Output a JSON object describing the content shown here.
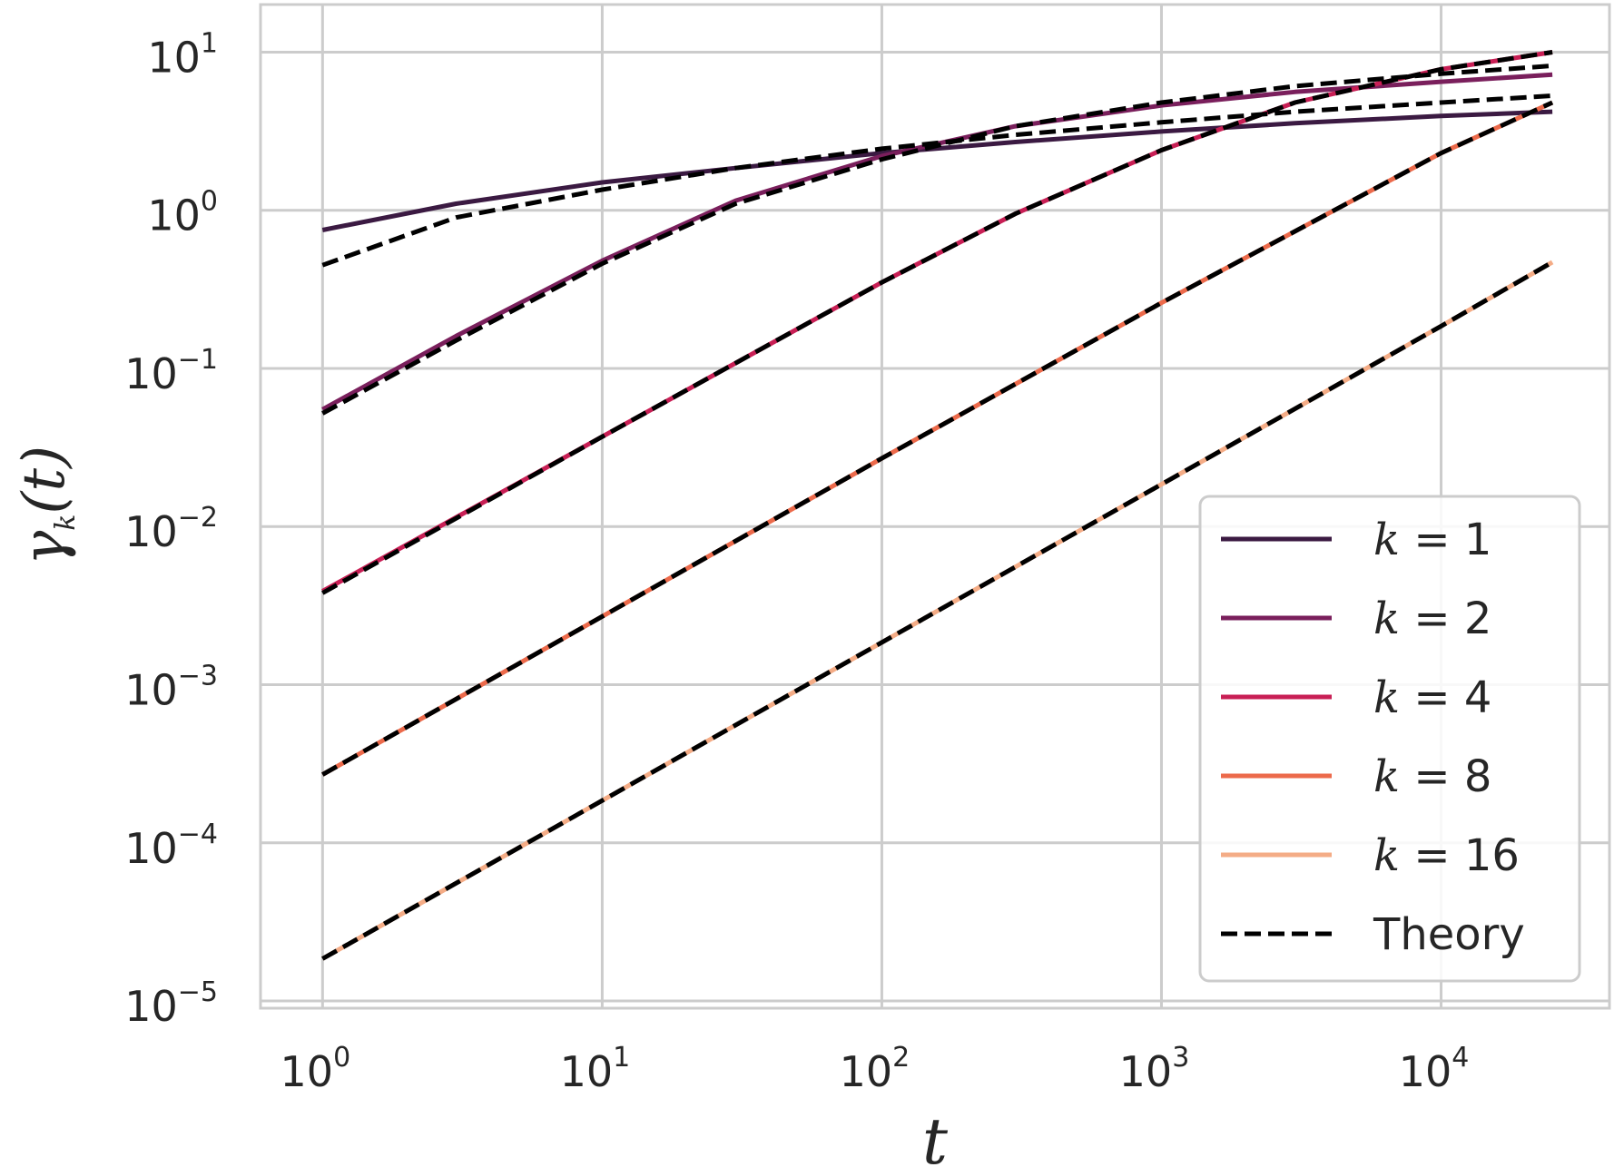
{
  "chart_data": {
    "type": "line",
    "title": "",
    "xlabel": "t",
    "ylabel": "γ_k(t)",
    "xscale": "log",
    "yscale": "log",
    "xlim": [
      0.6,
      40000
    ],
    "ylim": [
      9e-06,
      20
    ],
    "grid": true,
    "legend_position": "lower right",
    "x_ticks": [
      {
        "base": "10",
        "exp": "0",
        "value": 1
      },
      {
        "base": "10",
        "exp": "1",
        "value": 10
      },
      {
        "base": "10",
        "exp": "2",
        "value": 100
      },
      {
        "base": "10",
        "exp": "3",
        "value": 1000
      },
      {
        "base": "10",
        "exp": "4",
        "value": 10000
      }
    ],
    "y_ticks": [
      {
        "base": "10",
        "exp": "1",
        "value": 10
      },
      {
        "base": "10",
        "exp": "0",
        "value": 1
      },
      {
        "base": "10",
        "exp": "−1",
        "value": 0.1
      },
      {
        "base": "10",
        "exp": "−2",
        "value": 0.01
      },
      {
        "base": "10",
        "exp": "−3",
        "value": 0.001
      },
      {
        "base": "10",
        "exp": "−4",
        "value": 0.0001
      },
      {
        "base": "10",
        "exp": "−5",
        "value": 1e-05
      }
    ],
    "series": [
      {
        "name": "k = 1",
        "k": "1",
        "color": "#3b1a42",
        "style": "solid",
        "points": [
          [
            1,
            0.75
          ],
          [
            3,
            1.1
          ],
          [
            10,
            1.5
          ],
          [
            30,
            1.85
          ],
          [
            100,
            2.3
          ],
          [
            300,
            2.7
          ],
          [
            1000,
            3.15
          ],
          [
            3000,
            3.55
          ],
          [
            10000,
            3.95
          ],
          [
            25000,
            4.2
          ]
        ]
      },
      {
        "name": "k = 2",
        "k": "2",
        "color": "#7a1f5c",
        "style": "solid",
        "points": [
          [
            1,
            0.055
          ],
          [
            3,
            0.16
          ],
          [
            10,
            0.48
          ],
          [
            30,
            1.15
          ],
          [
            100,
            2.2
          ],
          [
            300,
            3.4
          ],
          [
            1000,
            4.6
          ],
          [
            3000,
            5.6
          ],
          [
            10000,
            6.5
          ],
          [
            25000,
            7.2
          ]
        ]
      },
      {
        "name": "k = 4",
        "k": "4",
        "color": "#c81f55",
        "style": "solid",
        "points": [
          [
            1,
            0.0039
          ],
          [
            10,
            0.037
          ],
          [
            100,
            0.35
          ],
          [
            300,
            0.95
          ],
          [
            1000,
            2.4
          ],
          [
            3000,
            4.8
          ],
          [
            10000,
            7.8
          ],
          [
            25000,
            10
          ]
        ]
      },
      {
        "name": "k = 8",
        "k": "8",
        "color": "#ec6a4b",
        "style": "solid",
        "points": [
          [
            1,
            0.00027
          ],
          [
            10,
            0.0027
          ],
          [
            100,
            0.027
          ],
          [
            1000,
            0.26
          ],
          [
            10000,
            2.3
          ],
          [
            25000,
            4.8
          ]
        ]
      },
      {
        "name": "k = 16",
        "k": "16",
        "color": "#f4ac86",
        "style": "solid",
        "points": [
          [
            1,
            1.85e-05
          ],
          [
            10,
            0.000185
          ],
          [
            100,
            0.00185
          ],
          [
            1000,
            0.0185
          ],
          [
            10000,
            0.185
          ],
          [
            25000,
            0.47
          ]
        ]
      },
      {
        "name": "Theory",
        "color": "#000000",
        "style": "dashed",
        "in_legend": true,
        "curves": [
          [
            [
              1,
              0.45
            ],
            [
              3,
              0.9
            ],
            [
              10,
              1.35
            ],
            [
              30,
              1.85
            ],
            [
              100,
              2.45
            ],
            [
              300,
              3.0
            ],
            [
              1000,
              3.6
            ],
            [
              3000,
              4.2
            ],
            [
              10000,
              4.8
            ],
            [
              25000,
              5.3
            ]
          ],
          [
            [
              1,
              0.052
            ],
            [
              3,
              0.15
            ],
            [
              10,
              0.46
            ],
            [
              30,
              1.1
            ],
            [
              100,
              2.1
            ],
            [
              300,
              3.4
            ],
            [
              1000,
              4.8
            ],
            [
              3000,
              6.1
            ],
            [
              10000,
              7.3
            ],
            [
              25000,
              8.2
            ]
          ],
          [
            [
              1,
              0.0038
            ],
            [
              10,
              0.037
            ],
            [
              100,
              0.35
            ],
            [
              300,
              0.95
            ],
            [
              1000,
              2.4
            ],
            [
              3000,
              4.8
            ],
            [
              10000,
              7.8
            ],
            [
              25000,
              10
            ]
          ],
          [
            [
              1,
              0.00027
            ],
            [
              10,
              0.0027
            ],
            [
              100,
              0.027
            ],
            [
              1000,
              0.26
            ],
            [
              10000,
              2.3
            ],
            [
              25000,
              4.8
            ]
          ],
          [
            [
              1,
              1.85e-05
            ],
            [
              10,
              0.000185
            ],
            [
              100,
              0.00185
            ],
            [
              1000,
              0.0185
            ],
            [
              10000,
              0.185
            ],
            [
              25000,
              0.47
            ]
          ]
        ]
      }
    ]
  }
}
